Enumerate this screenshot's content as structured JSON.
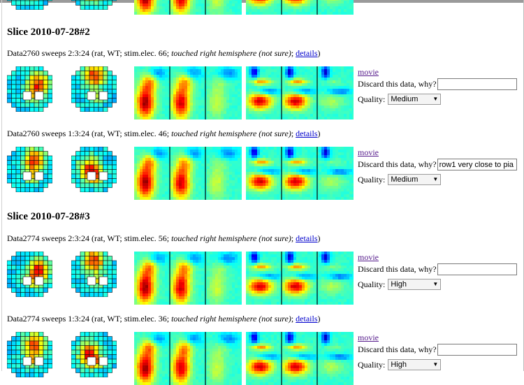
{
  "blocks": [
    {
      "slice_title": "Slice 2010-07-28#2",
      "entries": [
        {
          "dataset": "Data2760 sweeps 2:3:24",
          "info": "(rat, WT; stim.elec. 66;",
          "note": "touched right hemisphere (not sure)",
          "sep": ";",
          "details_label": "details",
          "close": ")",
          "movie_label": "movie",
          "discard_label": "Discard this data, why?",
          "discard_value": "",
          "quality_label": "Quality:",
          "quality_value": "Medium"
        },
        {
          "dataset": "Data2760 sweeps 1:3:24",
          "info": "(rat, WT; stim.elec. 46;",
          "note": "touched right hemisphere (not sure)",
          "sep": ";",
          "details_label": "details",
          "close": ")",
          "movie_label": "movie",
          "discard_label": "Discard this data, why?",
          "discard_value": "row1 very close to pia",
          "quality_label": "Quality:",
          "quality_value": "Medium"
        }
      ]
    },
    {
      "slice_title": "Slice 2010-07-28#3",
      "entries": [
        {
          "dataset": "Data2774 sweeps 2:3:24",
          "info": "(rat, WT; stim.elec. 56;",
          "note": "touched right hemisphere (not sure)",
          "sep": ";",
          "details_label": "details",
          "close": ")",
          "movie_label": "movie",
          "discard_label": "Discard this data, why?",
          "discard_value": "",
          "quality_label": "Quality:",
          "quality_value": "High"
        },
        {
          "dataset": "Data2774 sweeps 1:3:24",
          "info": "(rat, WT; stim.elec. 36;",
          "note": "touched right hemisphere (not sure)",
          "sep": ";",
          "details_label": "details",
          "close": ")",
          "movie_label": "movie",
          "discard_label": "Discard this data, why?",
          "discard_value": "",
          "quality_label": "Quality:",
          "quality_value": "High"
        }
      ]
    }
  ]
}
